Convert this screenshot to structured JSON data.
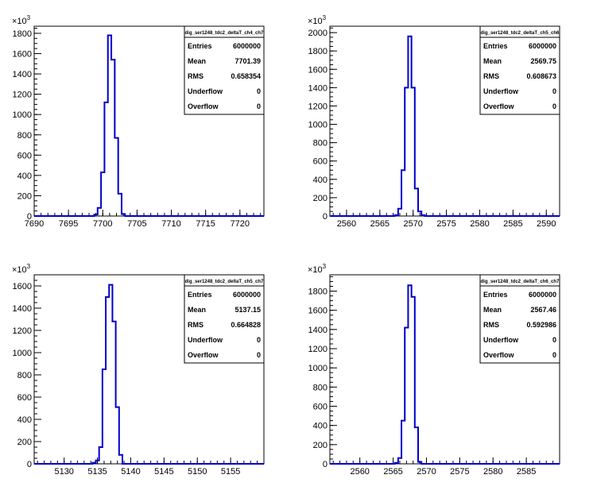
{
  "chart_data": [
    {
      "type": "histogram",
      "title": "",
      "xlabel": "",
      "ylabel": "",
      "yscale_label": "×10³",
      "stats": {
        "title": "dig_ser1248_tdc2_deltaT_ch4_ch7",
        "entries": "6000000",
        "mean": "7701.39",
        "rms": "0.658354",
        "underflow": "0",
        "overflow": "0"
      },
      "xlim": [
        7690,
        7723.5
      ],
      "ylim": [
        0,
        1870
      ],
      "xticks": [
        7690,
        7695,
        7700,
        7705,
        7710,
        7715,
        7720
      ],
      "yticks": [
        0,
        200,
        400,
        600,
        800,
        1000,
        1200,
        1400,
        1600,
        1800
      ],
      "x": [
        7699.0,
        7699.5,
        7700.0,
        7700.5,
        7701.0,
        7701.5,
        7702.0,
        7702.5,
        7703.0
      ],
      "values": [
        15,
        80,
        430,
        1120,
        1780,
        1540,
        770,
        220,
        20
      ]
    },
    {
      "type": "histogram",
      "title": "",
      "xlabel": "",
      "ylabel": "",
      "yscale_label": "×10³",
      "stats": {
        "title": "dig_ser1248_tdc2_deltaT_ch5_ch6",
        "entries": "6000000",
        "mean": "2569.75",
        "rms": "0.608673",
        "underflow": "0",
        "overflow": "0"
      },
      "xlim": [
        2557.5,
        2592
      ],
      "ylim": [
        0,
        2070
      ],
      "xticks": [
        2560,
        2565,
        2570,
        2575,
        2580,
        2585,
        2590
      ],
      "yticks": [
        0,
        200,
        400,
        600,
        800,
        1000,
        1200,
        1400,
        1600,
        1800,
        2000
      ],
      "x": [
        2567.5,
        2568.0,
        2568.5,
        2569.0,
        2569.5,
        2570.0,
        2570.5,
        2571.0,
        2571.5
      ],
      "values": [
        10,
        80,
        500,
        1400,
        1960,
        1400,
        300,
        50,
        10
      ]
    },
    {
      "type": "histogram",
      "title": "",
      "xlabel": "",
      "ylabel": "",
      "yscale_label": "×10³",
      "stats": {
        "title": "dig_ser1248_tdc2_deltaT_ch5_ch7",
        "entries": "6000000",
        "mean": "5137.15",
        "rms": "0.664828",
        "underflow": "0",
        "overflow": "0"
      },
      "xlim": [
        5125.5,
        5160
      ],
      "ylim": [
        0,
        1700
      ],
      "xticks": [
        5130,
        5135,
        5140,
        5145,
        5150,
        5155
      ],
      "yticks": [
        0,
        200,
        400,
        600,
        800,
        1000,
        1200,
        1400,
        1600
      ],
      "x": [
        5134.5,
        5135.0,
        5135.5,
        5136.0,
        5136.5,
        5137.0,
        5137.5,
        5138.0,
        5138.5
      ],
      "values": [
        10,
        30,
        150,
        850,
        1500,
        1610,
        1280,
        510,
        80
      ]
    },
    {
      "type": "histogram",
      "title": "",
      "xlabel": "",
      "ylabel": "",
      "yscale_label": "×10³",
      "stats": {
        "title": "dig_ser1248_tdc2_deltaT_ch6_ch7",
        "entries": "6000000",
        "mean": "2567.46",
        "rms": "0.592986",
        "underflow": "0",
        "overflow": "0"
      },
      "xlim": [
        2555.5,
        2590
      ],
      "ylim": [
        0,
        1970
      ],
      "xticks": [
        2560,
        2565,
        2570,
        2575,
        2580,
        2585
      ],
      "yticks": [
        0,
        200,
        400,
        600,
        800,
        1000,
        1200,
        1400,
        1600,
        1800
      ],
      "x": [
        2565.5,
        2566.0,
        2566.5,
        2567.0,
        2567.5,
        2568.0,
        2568.5,
        2569.0
      ],
      "values": [
        10,
        60,
        450,
        1420,
        1860,
        1740,
        380,
        20
      ]
    }
  ],
  "stats_labels": {
    "entries": "Entries",
    "mean": "Mean",
    "rms": "RMS",
    "underflow": "Underflow",
    "overflow": "Overflow"
  },
  "colors": {
    "line": "#0000cc",
    "axis": "#000000",
    "background": "#ffffff"
  }
}
